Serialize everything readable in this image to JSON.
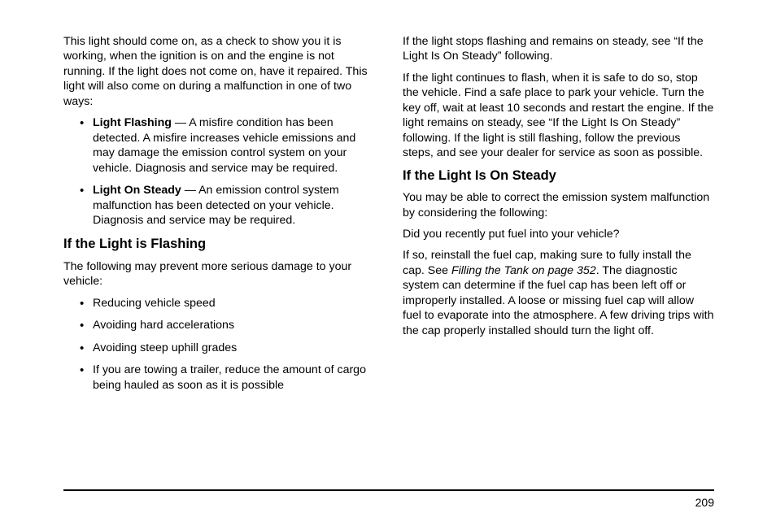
{
  "page": {
    "number": "209",
    "rule_color": "#000000",
    "background": "#ffffff",
    "text_color": "#000000",
    "font_family": "Helvetica/Arial",
    "body_fontsize_pt": 11,
    "heading_fontsize_pt": 12.5,
    "line_height": 1.3
  },
  "left_column": {
    "intro": "This light should come on, as a check to show you it is working, when the ignition is on and the engine is not running. If the light does not come on, have it repaired. This light will also come on during a malfunction in one of two ways:",
    "bullets1": [
      {
        "lead": "Light Flashing",
        "sep": " — ",
        "body": "A misfire condition has been detected. A misfire increases vehicle emissions and may damage the emission control system on your vehicle. Diagnosis and service may be required."
      },
      {
        "lead": "Light On Steady",
        "sep": " — ",
        "body": "An emission control system malfunction has been detected on your vehicle. Diagnosis and service may be required."
      }
    ],
    "heading_flashing": "If the Light is Flashing",
    "flashing_intro": "The following may prevent more serious damage to your vehicle:",
    "bullets2": [
      "Reducing vehicle speed",
      "Avoiding hard accelerations",
      "Avoiding steep uphill grades",
      "If you are towing a trailer, reduce the amount of cargo being hauled as soon as it is possible"
    ]
  },
  "right_column": {
    "para1": "If the light stops flashing and remains on steady, see “If the Light Is On Steady” following.",
    "para2": "If the light continues to flash, when it is safe to do so, stop the vehicle. Find a safe place to park your vehicle. Turn the key off, wait at least 10 seconds and restart the engine. If the light remains on steady, see “If the Light Is On Steady” following. If the light is still flashing, follow the previous steps, and see your dealer for service as soon as possible.",
    "heading_steady": "If the Light Is On Steady",
    "steady_intro": "You may be able to correct the emission system malfunction by considering the following:",
    "steady_q": "Did you recently put fuel into your vehicle?",
    "steady_body_pre": "If so, reinstall the fuel cap, making sure to fully install the cap. See ",
    "steady_body_ref": "Filling the Tank on page 352",
    "steady_body_post": ". The diagnostic system can determine if the fuel cap has been left off or improperly installed. A loose or missing fuel cap will allow fuel to evaporate into the atmosphere. A few driving trips with the cap properly installed should turn the light off."
  }
}
